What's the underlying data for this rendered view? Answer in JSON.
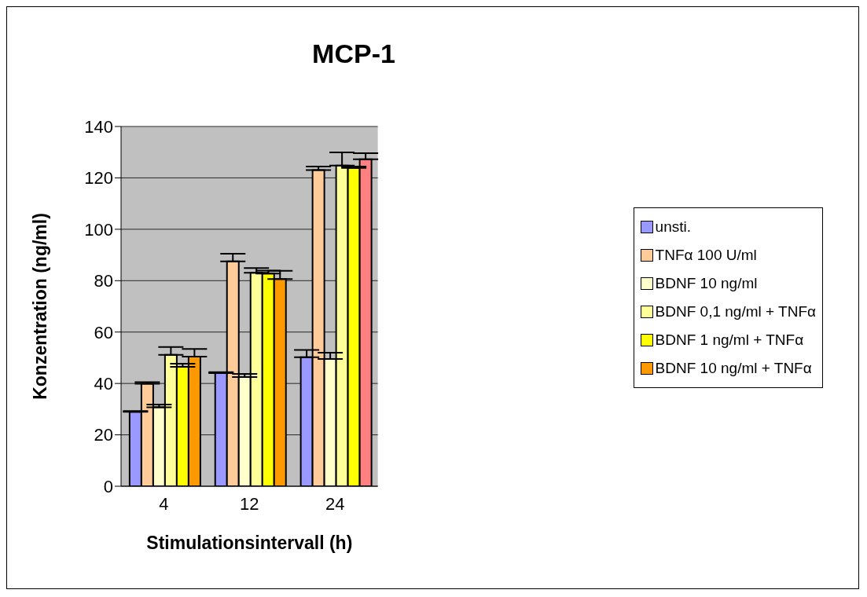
{
  "chart_data": {
    "type": "bar",
    "title": "MCP-1",
    "xlabel": "Stimulationsintervall (h)",
    "ylabel": "Konzentration (ng/ml)",
    "categories": [
      "4",
      "12",
      "24"
    ],
    "series": [
      {
        "name": "unsti.",
        "color": "#9999ff",
        "values": [
          29.0,
          44.0,
          50.2
        ],
        "errors": [
          [
            29.0,
            29.3
          ],
          [
            44.0,
            44.4
          ],
          [
            50.2,
            53.0
          ]
        ]
      },
      {
        "name": "TNFα 100 U/ml",
        "color": "#ffcc99",
        "values": [
          39.9,
          87.5,
          123.0
        ],
        "errors": [
          [
            39.9,
            40.5
          ],
          [
            87.5,
            90.5
          ],
          [
            123.0,
            124.4
          ]
        ]
      },
      {
        "name": "BDNF 10 ng/ml",
        "color": "#ffffcc",
        "values": [
          30.7,
          42.5,
          49.5
        ],
        "errors": [
          [
            30.7,
            31.8
          ],
          [
            42.5,
            43.7
          ],
          [
            49.5,
            52.0
          ]
        ]
      },
      {
        "name": "BDNF 0,1 ng/ml + TNFα",
        "color": "#ffff99",
        "values": [
          51.1,
          83.1,
          124.8
        ],
        "errors": [
          [
            51.1,
            54.2
          ],
          [
            83.1,
            84.9
          ],
          [
            124.8,
            129.9
          ]
        ]
      },
      {
        "name": "BDNF 1 ng/ml + TNFα",
        "color": "#ffff00",
        "values": [
          46.5,
          82.8,
          123.9
        ],
        "errors": [
          [
            46.5,
            47.7
          ],
          [
            82.8,
            83.9
          ],
          [
            123.9,
            124.4
          ]
        ]
      },
      {
        "name": "BDNF 10 ng/ml + TNFα",
        "color": "#ff9900",
        "colors": [
          "#ff9900",
          "#ff9900",
          "#ff8080"
        ],
        "values": [
          50.4,
          80.6,
          127.2
        ],
        "errors": [
          [
            50.4,
            53.4
          ],
          [
            80.6,
            83.8
          ],
          [
            127.2,
            129.6
          ]
        ]
      }
    ],
    "ylim": [
      0,
      140
    ],
    "yticks": [
      0,
      20,
      40,
      60,
      80,
      100,
      120,
      140
    ],
    "grid": "y",
    "legend": "right"
  }
}
